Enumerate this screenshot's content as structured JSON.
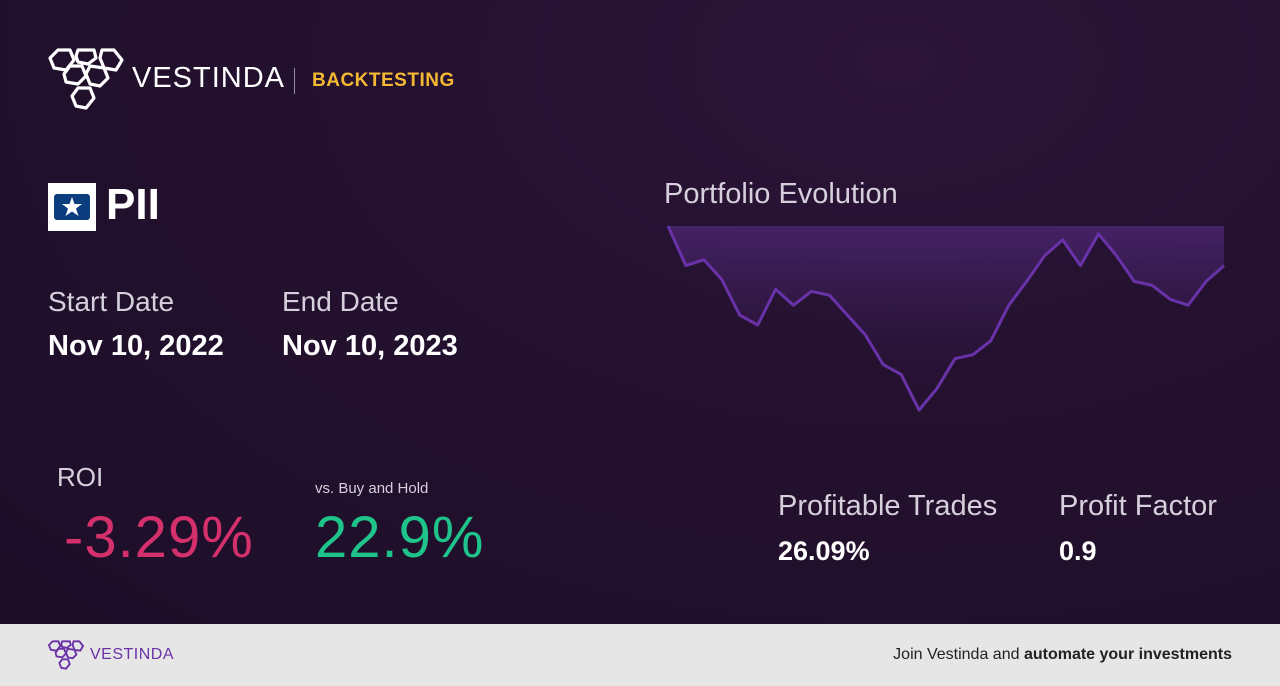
{
  "header": {
    "brand": "VESTINDA",
    "section": "BACKTESTING"
  },
  "ticker": {
    "symbol": "PII",
    "logo_icon": "polaris-star-icon"
  },
  "dates": {
    "start_label": "Start Date",
    "start_value": "Nov 10, 2022",
    "end_label": "End Date",
    "end_value": "Nov 10, 2023"
  },
  "roi": {
    "label": "ROI",
    "value": "-3.29%",
    "color": "#d4306c"
  },
  "buy_hold": {
    "label": "vs. Buy and Hold",
    "value": "22.9%",
    "color": "#1fc48a"
  },
  "chart": {
    "title": "Portfolio Evolution",
    "line_color": "#6a32a8"
  },
  "chart_data": {
    "type": "area",
    "title": "Portfolio Evolution",
    "xlabel": "",
    "ylabel": "",
    "grid": false,
    "y": [
      1.0,
      0.8,
      0.83,
      0.73,
      0.55,
      0.5,
      0.68,
      0.6,
      0.67,
      0.65,
      0.55,
      0.45,
      0.3,
      0.25,
      0.07,
      0.18,
      0.33,
      0.35,
      0.42,
      0.6,
      0.72,
      0.85,
      0.93,
      0.8,
      0.96,
      0.85,
      0.72,
      0.7,
      0.63,
      0.6,
      0.72,
      0.8
    ]
  },
  "stats": {
    "profitable_label": "Profitable Trades",
    "profitable_value": "26.09%",
    "factor_label": "Profit Factor",
    "factor_value": "0.9"
  },
  "footer": {
    "brand": "VESTINDA",
    "cta_prefix": "Join Vestinda and ",
    "cta_bold": "automate your investments"
  }
}
